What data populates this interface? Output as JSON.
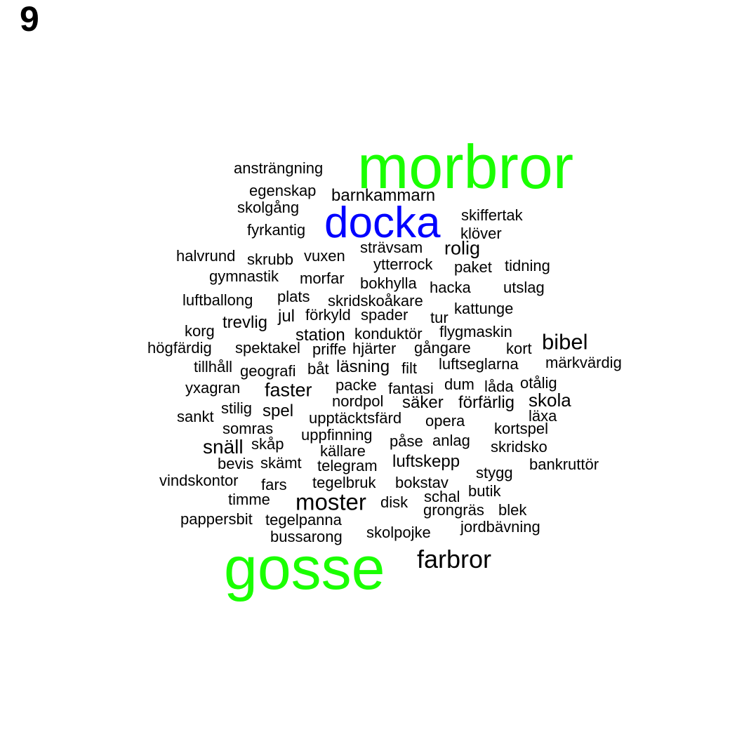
{
  "panel_number": "9",
  "colors": {
    "default": "#000000",
    "green": "#1aff00",
    "blue": "#0000ff"
  },
  "words": [
    {
      "text": "morbror",
      "color": "green"
    },
    {
      "text": "gosse",
      "color": "green"
    },
    {
      "text": "docka",
      "color": "blue"
    },
    {
      "text": "farbror",
      "color": "default"
    },
    {
      "text": "moster",
      "color": "default"
    },
    {
      "text": "bibel",
      "color": "default"
    },
    {
      "text": "snäll",
      "color": "default"
    },
    {
      "text": "faster",
      "color": "default"
    },
    {
      "text": "rolig",
      "color": "default"
    },
    {
      "text": "skola",
      "color": "default"
    },
    {
      "text": "barnkammarn",
      "color": "default"
    },
    {
      "text": "läsning",
      "color": "default"
    },
    {
      "text": "trevlig",
      "color": "default"
    },
    {
      "text": "ansträngning",
      "color": "default"
    },
    {
      "text": "egenskap",
      "color": "default"
    },
    {
      "text": "skolgång",
      "color": "default"
    },
    {
      "text": "skiffertak",
      "color": "default"
    },
    {
      "text": "fyrkantig",
      "color": "default"
    },
    {
      "text": "klöver",
      "color": "default"
    },
    {
      "text": "strävsam",
      "color": "default"
    },
    {
      "text": "halvrund",
      "color": "default"
    },
    {
      "text": "skrubb",
      "color": "default"
    },
    {
      "text": "vuxen",
      "color": "default"
    },
    {
      "text": "ytterrock",
      "color": "default"
    },
    {
      "text": "paket",
      "color": "default"
    },
    {
      "text": "tidning",
      "color": "default"
    },
    {
      "text": "gymnastik",
      "color": "default"
    },
    {
      "text": "morfar",
      "color": "default"
    },
    {
      "text": "bokhylla",
      "color": "default"
    },
    {
      "text": "hacka",
      "color": "default"
    },
    {
      "text": "utslag",
      "color": "default"
    },
    {
      "text": "luftballong",
      "color": "default"
    },
    {
      "text": "plats",
      "color": "default"
    },
    {
      "text": "skridskoåkare",
      "color": "default"
    },
    {
      "text": "kattunge",
      "color": "default"
    },
    {
      "text": "jul",
      "color": "default"
    },
    {
      "text": "förkyld",
      "color": "default"
    },
    {
      "text": "spader",
      "color": "default"
    },
    {
      "text": "tur",
      "color": "default"
    },
    {
      "text": "korg",
      "color": "default"
    },
    {
      "text": "station",
      "color": "default"
    },
    {
      "text": "konduktör",
      "color": "default"
    },
    {
      "text": "flygmaskin",
      "color": "default"
    },
    {
      "text": "högfärdig",
      "color": "default"
    },
    {
      "text": "spektakel",
      "color": "default"
    },
    {
      "text": "priffe",
      "color": "default"
    },
    {
      "text": "hjärter",
      "color": "default"
    },
    {
      "text": "gångare",
      "color": "default"
    },
    {
      "text": "kort",
      "color": "default"
    },
    {
      "text": "tillhåll",
      "color": "default"
    },
    {
      "text": "geografi",
      "color": "default"
    },
    {
      "text": "båt",
      "color": "default"
    },
    {
      "text": "filt",
      "color": "default"
    },
    {
      "text": "luftseglarna",
      "color": "default"
    },
    {
      "text": "märkvärdig",
      "color": "default"
    },
    {
      "text": "yxagran",
      "color": "default"
    },
    {
      "text": "packe",
      "color": "default"
    },
    {
      "text": "fantasi",
      "color": "default"
    },
    {
      "text": "dum",
      "color": "default"
    },
    {
      "text": "låda",
      "color": "default"
    },
    {
      "text": "otålig",
      "color": "default"
    },
    {
      "text": "stilig",
      "color": "default"
    },
    {
      "text": "spel",
      "color": "default"
    },
    {
      "text": "nordpol",
      "color": "default"
    },
    {
      "text": "säker",
      "color": "default"
    },
    {
      "text": "förfärlig",
      "color": "default"
    },
    {
      "text": "sankt",
      "color": "default"
    },
    {
      "text": "upptäcktsfärd",
      "color": "default"
    },
    {
      "text": "opera",
      "color": "default"
    },
    {
      "text": "läxa",
      "color": "default"
    },
    {
      "text": "somras",
      "color": "default"
    },
    {
      "text": "kortspel",
      "color": "default"
    },
    {
      "text": "uppfinning",
      "color": "default"
    },
    {
      "text": "skåp",
      "color": "default"
    },
    {
      "text": "påse",
      "color": "default"
    },
    {
      "text": "anlag",
      "color": "default"
    },
    {
      "text": "skridsko",
      "color": "default"
    },
    {
      "text": "källare",
      "color": "default"
    },
    {
      "text": "bevis",
      "color": "default"
    },
    {
      "text": "skämt",
      "color": "default"
    },
    {
      "text": "telegram",
      "color": "default"
    },
    {
      "text": "luftskepp",
      "color": "default"
    },
    {
      "text": "bankruttör",
      "color": "default"
    },
    {
      "text": "stygg",
      "color": "default"
    },
    {
      "text": "vindskontor",
      "color": "default"
    },
    {
      "text": "fars",
      "color": "default"
    },
    {
      "text": "tegelbruk",
      "color": "default"
    },
    {
      "text": "bokstav",
      "color": "default"
    },
    {
      "text": "butik",
      "color": "default"
    },
    {
      "text": "timme",
      "color": "default"
    },
    {
      "text": "disk",
      "color": "default"
    },
    {
      "text": "schal",
      "color": "default"
    },
    {
      "text": "grongräs",
      "color": "default"
    },
    {
      "text": "blek",
      "color": "default"
    },
    {
      "text": "pappersbit",
      "color": "default"
    },
    {
      "text": "tegelpanna",
      "color": "default"
    },
    {
      "text": "jordbävning",
      "color": "default"
    },
    {
      "text": "skolpojke",
      "color": "default"
    },
    {
      "text": "bussarong",
      "color": "default"
    }
  ]
}
